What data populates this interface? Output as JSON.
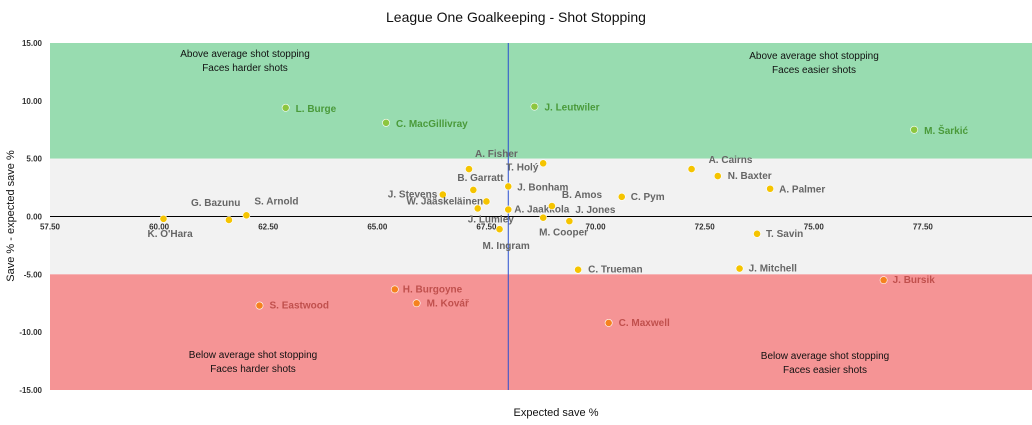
{
  "chart_data": {
    "type": "scatter",
    "title": "League One Goalkeeping - Shot Stopping",
    "xlabel": "Expected save %",
    "ylabel": "Save % - expected save %",
    "xlim": [
      57.5,
      80
    ],
    "ylim": [
      -15,
      15
    ],
    "x_ticks": [
      57.5,
      60,
      62.5,
      65,
      67.5,
      70,
      72.5,
      75,
      77.5
    ],
    "x_tick_labels": [
      "57.50",
      "60.00",
      "62.50",
      "65.00",
      "67.50",
      "70.00",
      "72.50",
      "75.00",
      "77.50"
    ],
    "y_ticks": [
      15,
      10,
      5,
      0,
      -5,
      -10,
      -15
    ],
    "y_tick_labels": [
      "15.00",
      "10.00",
      "5.00",
      "0.00",
      "-5.00",
      "-10.00",
      "-15.00"
    ],
    "average_x": 68,
    "bands": [
      {
        "from": 5,
        "to": 15,
        "color": "#98dcb0"
      },
      {
        "from": -5,
        "to": 5,
        "color": "#f2f2f2"
      },
      {
        "from": -15,
        "to": -5,
        "color": "#f59495"
      }
    ],
    "zone_labels": [
      {
        "line1": "Above average shot stopping",
        "line2": "Faces harder shots"
      },
      {
        "line1": "Above average shot stopping",
        "line2": "Faces easier shots"
      },
      {
        "line1": "Below average shot stopping",
        "line2": "Faces harder shots"
      },
      {
        "line1": "Below average shot stopping",
        "line2": "Faces easier shots"
      }
    ],
    "category_colors": {
      "green": "#8dc63f",
      "yellow": "#f5c400",
      "red": "#f5821f"
    },
    "label_colors": {
      "green": "#4a9a3a",
      "yellow": "#666666",
      "red": "#c0504d"
    },
    "points": [
      {
        "name": "L. Burge",
        "x": 62.9,
        "y": 9.4,
        "group": "green"
      },
      {
        "name": "C. MacGillivray",
        "x": 65.2,
        "y": 8.1,
        "group": "green"
      },
      {
        "name": "J. Leutwiler",
        "x": 68.6,
        "y": 9.5,
        "group": "green"
      },
      {
        "name": "M. Šarkić",
        "x": 77.3,
        "y": 7.5,
        "group": "green"
      },
      {
        "name": "A. Fisher",
        "x": 67.1,
        "y": 4.1,
        "group": "yellow"
      },
      {
        "name": "T. Holý",
        "x": 68.8,
        "y": 4.6,
        "group": "yellow"
      },
      {
        "name": "B. Garratt",
        "x": 67.2,
        "y": 2.3,
        "group": "yellow"
      },
      {
        "name": "J. Bonham",
        "x": 68.0,
        "y": 2.6,
        "group": "yellow"
      },
      {
        "name": "J. Stevens",
        "x": 66.5,
        "y": 1.9,
        "group": "yellow"
      },
      {
        "name": "W. Jääskeläinen",
        "x": 67.5,
        "y": 1.3,
        "group": "yellow"
      },
      {
        "name": "J. Lumley",
        "x": 67.3,
        "y": 0.7,
        "group": "yellow"
      },
      {
        "name": "A. Jaakkola",
        "x": 68.0,
        "y": 0.6,
        "group": "yellow"
      },
      {
        "name": "B. Amos",
        "x": 69.0,
        "y": 0.9,
        "group": "yellow"
      },
      {
        "name": "J. Jones",
        "x": 69.4,
        "y": -0.4,
        "group": "yellow"
      },
      {
        "name": "M. Cooper",
        "x": 68.8,
        "y": -0.1,
        "group": "yellow"
      },
      {
        "name": "M. Ingram",
        "x": 67.8,
        "y": -1.1,
        "group": "yellow"
      },
      {
        "name": "C. Pym",
        "x": 70.6,
        "y": 1.7,
        "group": "yellow"
      },
      {
        "name": "A. Cairns",
        "x": 72.2,
        "y": 4.1,
        "group": "yellow"
      },
      {
        "name": "N. Baxter",
        "x": 72.8,
        "y": 3.5,
        "group": "yellow"
      },
      {
        "name": "A. Palmer",
        "x": 74.0,
        "y": 2.4,
        "group": "yellow"
      },
      {
        "name": "T. Savin",
        "x": 73.7,
        "y": -1.5,
        "group": "yellow"
      },
      {
        "name": "G. Bazunu",
        "x": 61.6,
        "y": -0.3,
        "group": "yellow"
      },
      {
        "name": "S. Arnold",
        "x": 62.0,
        "y": 0.1,
        "group": "yellow"
      },
      {
        "name": "K. O'Hara",
        "x": 60.1,
        "y": -0.2,
        "group": "yellow"
      },
      {
        "name": "C. Trueman",
        "x": 69.6,
        "y": -4.6,
        "group": "yellow"
      },
      {
        "name": "J. Mitchell",
        "x": 73.3,
        "y": -4.5,
        "group": "yellow"
      },
      {
        "name": "H. Burgoyne",
        "x": 65.4,
        "y": -6.3,
        "group": "red"
      },
      {
        "name": "M. Kovář",
        "x": 65.9,
        "y": -7.5,
        "group": "red"
      },
      {
        "name": "S. Eastwood",
        "x": 62.3,
        "y": -7.7,
        "group": "red"
      },
      {
        "name": "C. Maxwell",
        "x": 70.3,
        "y": -9.2,
        "group": "red"
      },
      {
        "name": "J. Bursik",
        "x": 76.6,
        "y": -5.5,
        "group": "red"
      }
    ]
  }
}
